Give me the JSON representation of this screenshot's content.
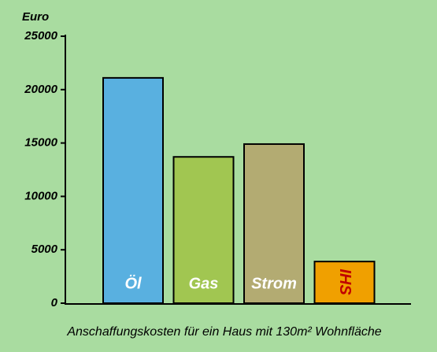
{
  "chart_data": {
    "type": "bar",
    "y_label": "Euro",
    "x_label": "Anschaffungskosten für ein Haus mit 130m² Wohnfläche",
    "categories": [
      "Öl",
      "Gas",
      "Strom",
      "IHS"
    ],
    "values": [
      21100,
      13700,
      14900,
      3900
    ],
    "colors": [
      "#59b0e0",
      "#a1c651",
      "#b3ab72",
      "#f0a000"
    ],
    "ylim": [
      0,
      25000
    ],
    "yticks": [
      0,
      5000,
      10000,
      15000,
      20000,
      25000
    ]
  }
}
